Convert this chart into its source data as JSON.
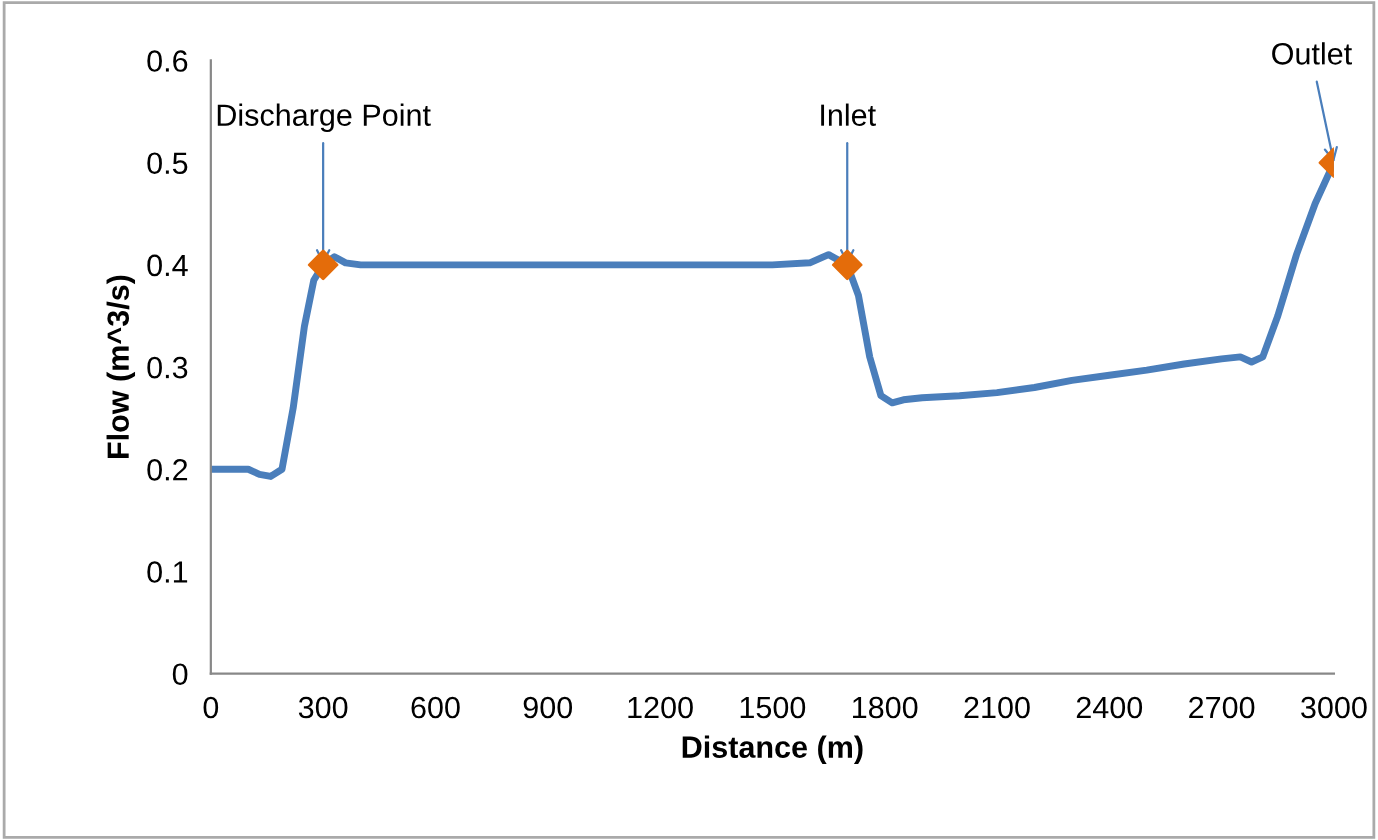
{
  "chart_data": {
    "type": "line",
    "xlabel": "Distance (m)",
    "ylabel": "Flow (m^3/s)",
    "xlim": [
      0,
      3000
    ],
    "ylim": [
      0,
      0.6
    ],
    "xticks": [
      0,
      300,
      600,
      900,
      1200,
      1500,
      1800,
      2100,
      2400,
      2700,
      3000
    ],
    "yticks": [
      0,
      0.1,
      0.2,
      0.3,
      0.4,
      0.5,
      0.6
    ],
    "grid": false,
    "legend": false,
    "series": [
      {
        "type": "line",
        "color": "#4a7ebb",
        "marker": "none",
        "x": [
          0,
          60,
          100,
          130,
          160,
          190,
          220,
          250,
          275,
          300,
          330,
          360,
          400,
          600,
          900,
          1200,
          1500,
          1600,
          1650,
          1700,
          1730,
          1760,
          1790,
          1820,
          1850,
          1900,
          2000,
          2100,
          2200,
          2300,
          2400,
          2500,
          2600,
          2700,
          2750,
          2780,
          2810,
          2850,
          2900,
          2950,
          3000
        ],
        "values": [
          0.2,
          0.2,
          0.2,
          0.195,
          0.193,
          0.2,
          0.26,
          0.34,
          0.385,
          0.4,
          0.408,
          0.402,
          0.4,
          0.4,
          0.4,
          0.4,
          0.4,
          0.402,
          0.41,
          0.4,
          0.37,
          0.31,
          0.272,
          0.265,
          0.268,
          0.27,
          0.272,
          0.275,
          0.28,
          0.287,
          0.292,
          0.297,
          0.303,
          0.308,
          0.31,
          0.305,
          0.31,
          0.35,
          0.41,
          0.46,
          0.5
        ]
      },
      {
        "type": "scatter",
        "color": "#e46c0a",
        "marker": "diamond",
        "x": [
          300,
          1700,
          3000
        ],
        "values": [
          0.4,
          0.4,
          0.5
        ]
      }
    ],
    "annotations": [
      {
        "text": "Discharge Point",
        "x": 300,
        "y": 0.4
      },
      {
        "text": "Inlet",
        "x": 1700,
        "y": 0.4
      },
      {
        "text": "Outlet",
        "x": 3000,
        "y": 0.5
      }
    ]
  }
}
